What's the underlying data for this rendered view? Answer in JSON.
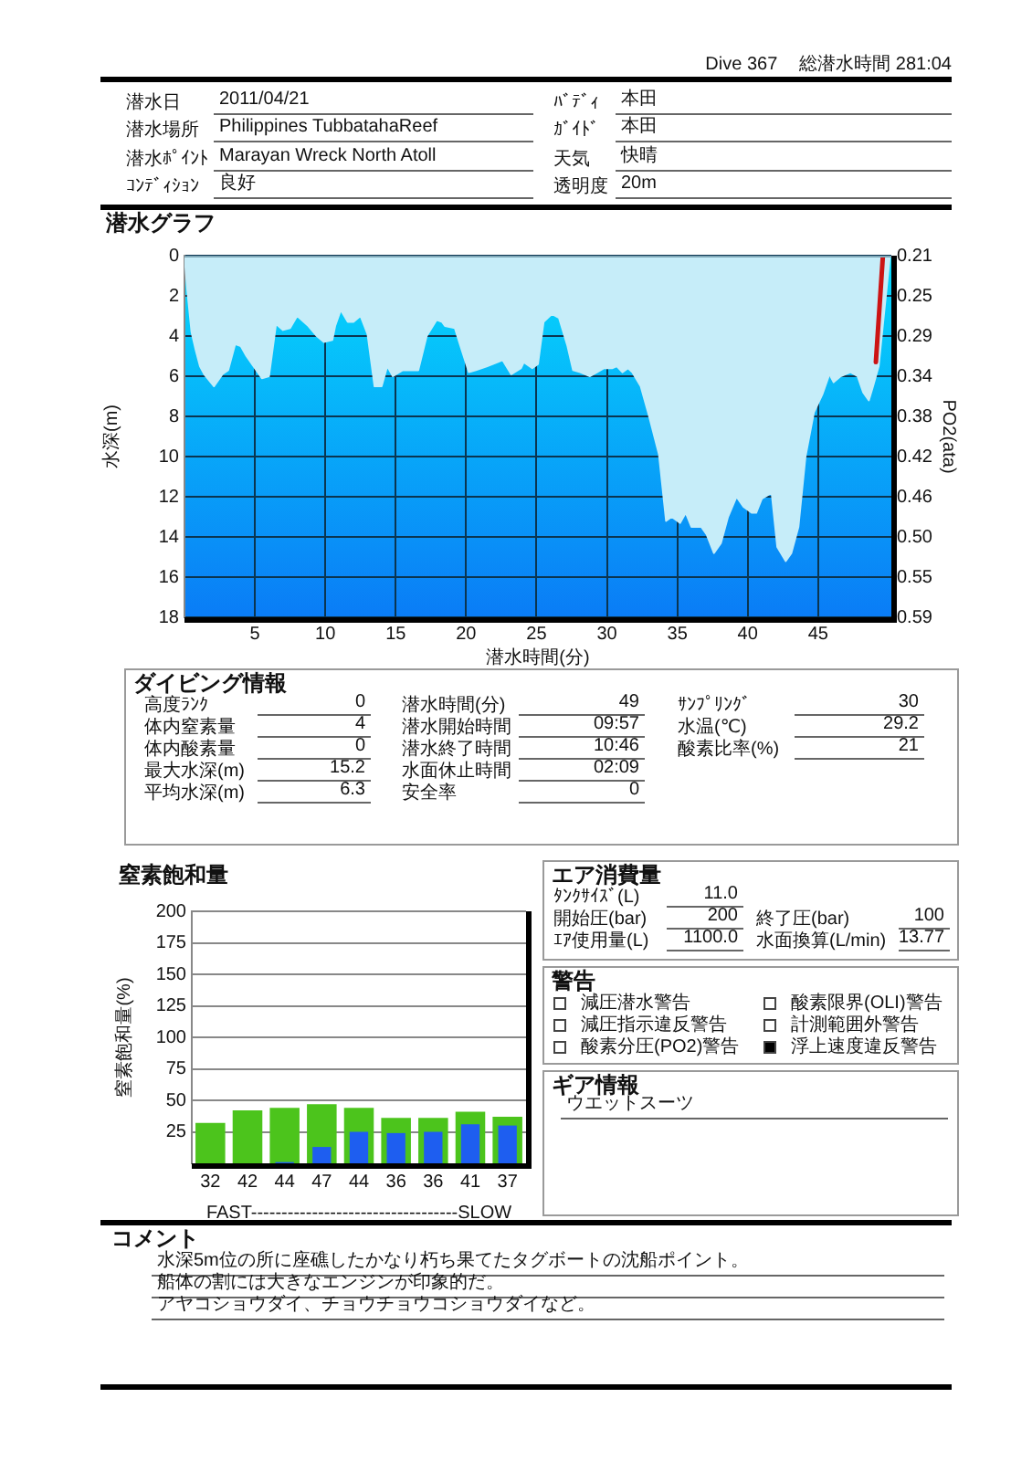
{
  "chart_data": [
    {
      "type": "other",
      "title": "Dive 367",
      "subtitle": "総潜水時間 281:04",
      "annotations": [
        "潜水日",
        "2011/04/21",
        "潜水場所",
        "Philippines TubbatahaReef",
        "潜水ﾎﾟｲﾝﾄ",
        "Marayan Wreck North Atoll",
        "ｺﾝﾃﾞｨｼｮﾝ",
        "良好",
        "ﾊﾞﾃﾞｨ",
        "本田",
        "ｶﾞｲﾄﾞ",
        "本田",
        "天気",
        "快晴",
        "透明度",
        "20m"
      ]
    },
    {
      "type": "area",
      "title": "潜水グラフ",
      "xlabel": "潜水時間(分)",
      "ylabel": "水深(m)",
      "y2label": "PO2(ata)",
      "xlim": [
        0,
        50.2
      ],
      "xticks": [
        5,
        10,
        15,
        20,
        25,
        30,
        35,
        40,
        45
      ],
      "ylim": [
        18,
        0
      ],
      "yticks": [
        0,
        2,
        4,
        6,
        8,
        10,
        12,
        14,
        16,
        18
      ],
      "y2lim": [
        0.588,
        0.21
      ],
      "y2ticks": [
        0.21,
        {
          "value": 0.252,
          "label": "0.25"
        },
        {
          "value": 0.294,
          "label": "0.29"
        },
        {
          "value": 0.336,
          "label": "0.34"
        },
        {
          "value": 0.378,
          "label": "0.38"
        },
        0.42,
        {
          "value": 0.462,
          "label": "0.46"
        },
        {
          "value": 0.504,
          "label": "0.50"
        },
        {
          "value": 0.546,
          "label": "0.55"
        },
        {
          "value": 0.588,
          "label": "0.59"
        }
      ],
      "grid": true,
      "series": [
        {
          "color": "#c6edf9",
          "x": [
            0,
            0.2,
            0.5,
            0.8,
            1.1,
            1.4,
            2.1,
            2.7,
            3.1,
            3.6,
            4.0,
            4.4,
            5.0,
            5.5,
            6.0,
            6.5,
            7.0,
            7.5,
            8.0,
            8.8,
            9.4,
            9.9,
            10.5,
            10.7,
            11.1,
            11.6,
            12.0,
            12.5,
            13.0,
            13.5,
            14.0,
            14.4,
            14.8,
            15.5,
            16.6,
            17.2,
            17.9,
            18.3,
            18.5,
            19.2,
            19.6,
            20.2,
            20.7,
            21.5,
            22.6,
            23.2,
            23.9,
            24.1,
            24.7,
            25.1,
            25.5,
            26.1,
            26.6,
            27.2,
            27.6,
            28.1,
            28.8,
            29.3,
            29.8,
            30.4,
            30.7,
            31.1,
            31.5,
            31.8,
            32.4,
            33.0,
            33.7,
            34.2,
            34.6,
            35.2,
            35.6,
            36.0,
            36.7,
            37.1,
            37.6,
            38.1,
            38.6,
            39.2,
            39.7,
            40.3,
            40.6,
            41.0,
            41.7,
            42.1,
            42.7,
            43.1,
            43.6,
            44.1,
            44.7,
            45.3,
            45.8,
            46.1,
            46.6,
            47.3,
            47.8,
            48.2,
            48.6,
            48.9,
            49.3,
            50.1
          ],
          "values": [
            0,
            1.7,
            3.8,
            4.7,
            5.5,
            5.9,
            6.5,
            5.9,
            5.7,
            4.4,
            4.5,
            5.0,
            5.6,
            6.1,
            6.0,
            3.4,
            3.7,
            3.6,
            3.0,
            3.5,
            4.0,
            4.3,
            4.2,
            3.5,
            2.7,
            3.3,
            3.3,
            3.0,
            3.9,
            6.5,
            6.5,
            5.5,
            6.0,
            5.7,
            5.7,
            4.0,
            3.2,
            3.3,
            3.5,
            3.6,
            4.5,
            5.8,
            5.7,
            5.5,
            5.2,
            5.9,
            5.6,
            5.3,
            5.6,
            5.4,
            3.3,
            2.9,
            3.1,
            4.5,
            5.7,
            5.8,
            6.0,
            5.8,
            5.6,
            5.6,
            5.5,
            5.8,
            5.6,
            5.8,
            6.5,
            8.0,
            9.9,
            13.2,
            13.0,
            13.3,
            12.8,
            13.5,
            13.5,
            13.9,
            14.8,
            14.3,
            13.0,
            12.0,
            12.5,
            12.8,
            12.8,
            12.1,
            11.8,
            14.5,
            15.2,
            14.8,
            13.5,
            10.0,
            7.8,
            6.9,
            5.9,
            6.3,
            6.0,
            5.8,
            6.0,
            6.8,
            7.2,
            6.5,
            5.5,
            0
          ]
        },
        {
          "type": "line",
          "color": "#cc1414",
          "x": [
            49.1,
            49.6
          ],
          "values": [
            5.3,
            0
          ]
        }
      ]
    },
    {
      "type": "other",
      "title": "ダイビング情報",
      "annotations": [
        "高度ﾗﾝｸ",
        "0",
        "体内窒素量",
        "4",
        "体内酸素量",
        "0",
        "最大水深(m)",
        "15.2",
        "平均水深(m)",
        "6.3",
        "潜水時間(分)",
        "49",
        "潜水開始時間",
        "09:57",
        "潜水終了時間",
        "10:46",
        "水面休止時間",
        "02:09",
        "安全率",
        "0",
        "ｻﾝﾌﾟﾘﾝｸﾞ",
        "30",
        "水温(℃)",
        "29.2",
        "酸素比率(%)",
        "21"
      ]
    },
    {
      "type": "bar",
      "title": "窒素飽和量",
      "ylabel": "窒素飽和量(%)",
      "xlabel": "FAST----------------------------------SLOW",
      "categories": [
        "32",
        "42",
        "44",
        "47",
        "44",
        "36",
        "36",
        "41",
        "37"
      ],
      "ylim": [
        0,
        200
      ],
      "yticks": [
        25,
        50,
        75,
        100,
        125,
        150,
        175,
        200
      ],
      "grid": "y",
      "series": [
        {
          "color": "#4cc41c",
          "values": [
            32,
            42,
            44,
            47,
            44,
            36,
            36,
            41,
            37
          ]
        },
        {
          "color": "#1e5ef0",
          "values": [
            0,
            0,
            1,
            13,
            25,
            24,
            25,
            31,
            30
          ]
        }
      ]
    },
    {
      "type": "other",
      "title": "エア消費量",
      "annotations": [
        "ﾀﾝｸｻｲｽﾞ(L)",
        "11.0",
        "開始圧(bar)",
        "200",
        "ｴｱ使用量(L)",
        "1100.0",
        "終了圧(bar)",
        "100",
        "水面換算(L/min)",
        "13.77"
      ]
    },
    {
      "type": "other",
      "title": "警告",
      "categories": [
        "減圧潜水警告",
        "減圧指示違反警告",
        "酸素分圧(PO2)警告",
        "酸素限界(OLI)警告",
        "計測範囲外警告",
        "浮上速度違反警告"
      ],
      "colors": [
        "#ffffff",
        "#ffffff",
        "#ffffff",
        "#ffffff",
        "#ffffff",
        "#000000"
      ]
    },
    {
      "type": "other",
      "title": "ギア情報",
      "annotations": [
        "ウエットスーツ"
      ]
    },
    {
      "type": "other",
      "title": "コメント",
      "annotations": [
        "水深5m位の所に座礁したかなり朽ち果てたタグボートの沈船ポイント。",
        "船体の割には大きなエンジンが印象的だ。",
        "アヤコショウダイ、チョウチョウコショウダイなど。"
      ]
    }
  ]
}
